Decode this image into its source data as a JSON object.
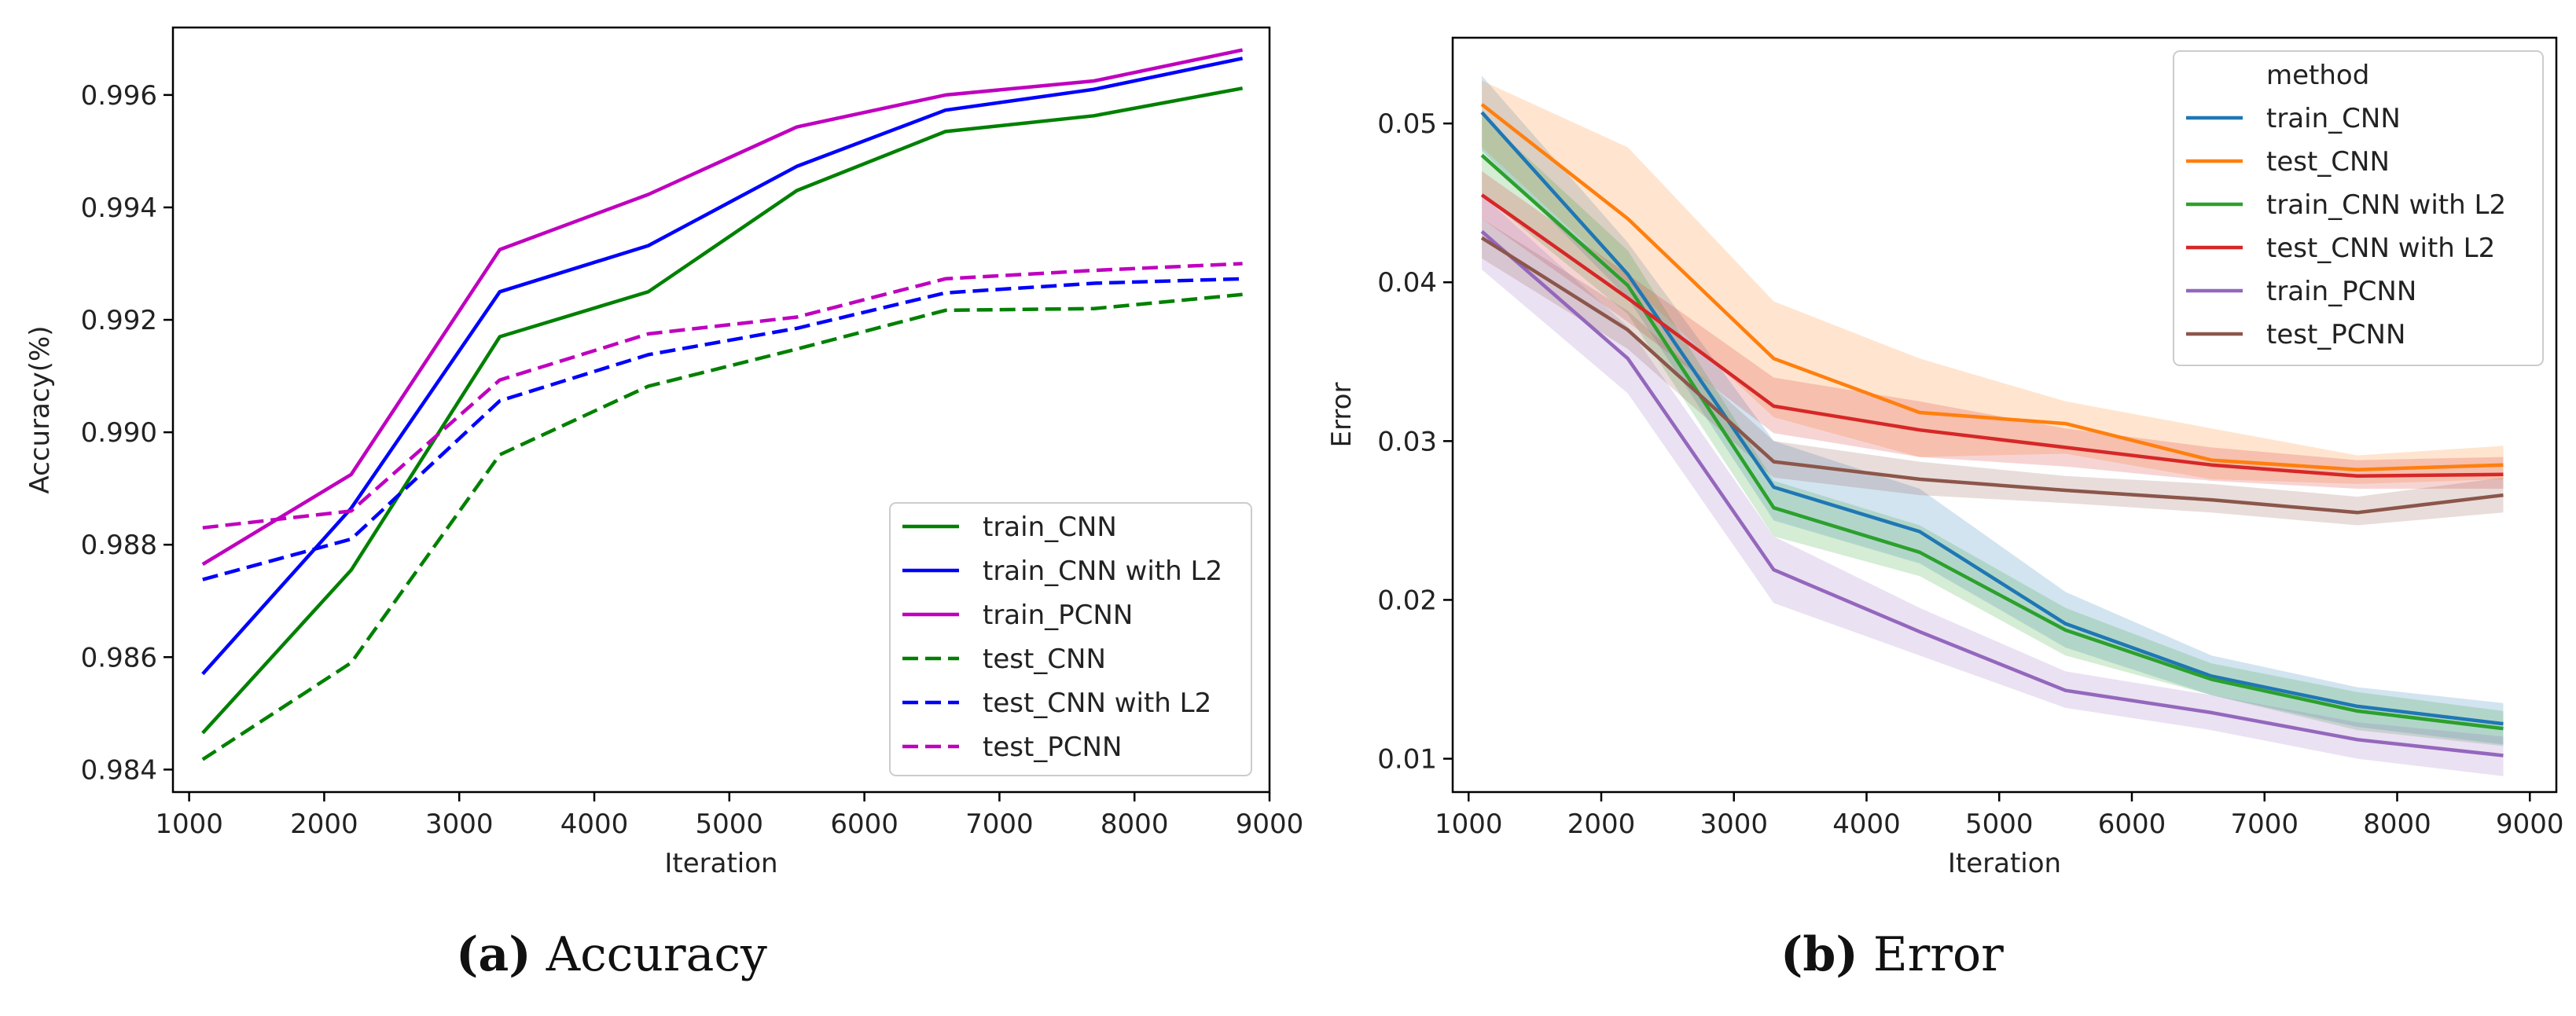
{
  "captions": [
    {
      "label": "(a)",
      "text": "Accuracy"
    },
    {
      "label": "(b)",
      "text": "Error"
    }
  ],
  "chart_data": [
    {
      "type": "line",
      "title": "",
      "xlabel": "Iteration",
      "ylabel": "Accuracy(%)",
      "xlim": [
        880,
        9000
      ],
      "ylim": [
        0.9836,
        0.9972
      ],
      "xticks": [
        1000,
        2000,
        3000,
        4000,
        5000,
        6000,
        7000,
        8000,
        9000
      ],
      "xtick_labels": [
        "1000",
        "2000",
        "3000",
        "4000",
        "5000",
        "6000",
        "7000",
        "8000",
        "9000"
      ],
      "yticks": [
        0.984,
        0.986,
        0.988,
        0.99,
        0.992,
        0.994,
        0.996
      ],
      "ytick_labels": [
        "0.984",
        "0.986",
        "0.988",
        "0.990",
        "0.992",
        "0.994",
        "0.996"
      ],
      "grid": false,
      "legend_position": "lower-right",
      "x": [
        1100,
        2200,
        3300,
        4400,
        5500,
        6600,
        7700,
        8800
      ],
      "series": [
        {
          "name": "train_CNN",
          "color": "#008000",
          "dash": "solid",
          "values": [
            0.98465,
            0.98755,
            0.9917,
            0.9925,
            0.9943,
            0.99535,
            0.99563,
            0.99612
          ]
        },
        {
          "name": "train_CNN with L2",
          "color": "#0000ff",
          "dash": "solid",
          "values": [
            0.9857,
            0.98865,
            0.9925,
            0.99332,
            0.99473,
            0.99573,
            0.9961,
            0.99665
          ]
        },
        {
          "name": "train_PCNN",
          "color": "#bf00bf",
          "dash": "solid",
          "values": [
            0.98765,
            0.98925,
            0.99325,
            0.99423,
            0.99543,
            0.996,
            0.99625,
            0.9968
          ]
        },
        {
          "name": "test_CNN",
          "color": "#008000",
          "dash": "dashed",
          "values": [
            0.98418,
            0.9859,
            0.9896,
            0.99082,
            0.99148,
            0.99217,
            0.9922,
            0.99245
          ]
        },
        {
          "name": "test_CNN with L2",
          "color": "#0000ff",
          "dash": "dashed",
          "values": [
            0.98738,
            0.9881,
            0.99056,
            0.99138,
            0.99185,
            0.99248,
            0.99265,
            0.99273
          ]
        },
        {
          "name": "test_PCNN",
          "color": "#bf00bf",
          "dash": "dashed",
          "values": [
            0.9883,
            0.9886,
            0.99093,
            0.99175,
            0.99205,
            0.99273,
            0.99288,
            0.993
          ]
        }
      ]
    },
    {
      "type": "line",
      "title": "",
      "xlabel": "Iteration",
      "ylabel": "Error",
      "xlim": [
        880,
        9200
      ],
      "ylim": [
        0.0079,
        0.0554
      ],
      "xticks": [
        1000,
        2000,
        3000,
        4000,
        5000,
        6000,
        7000,
        8000,
        9000
      ],
      "xtick_labels": [
        "1000",
        "2000",
        "3000",
        "4000",
        "5000",
        "6000",
        "7000",
        "8000",
        "9000"
      ],
      "yticks": [
        0.01,
        0.02,
        0.03,
        0.04,
        0.05
      ],
      "ytick_labels": [
        "0.01",
        "0.02",
        "0.03",
        "0.04",
        "0.05"
      ],
      "grid": false,
      "legend_title": "method",
      "legend_position": "upper-right",
      "x": [
        1100,
        2200,
        3300,
        4400,
        5500,
        6600,
        7700,
        8800
      ],
      "series": [
        {
          "name": "train_CNN",
          "color": "#1f77b4",
          "values": [
            0.0507,
            0.0405,
            0.0271,
            0.0243,
            0.0185,
            0.0152,
            0.0133,
            0.0122
          ],
          "lower": [
            0.0483,
            0.039,
            0.025,
            0.0223,
            0.017,
            0.014,
            0.012,
            0.0109
          ],
          "upper": [
            0.053,
            0.0425,
            0.03,
            0.027,
            0.0205,
            0.0165,
            0.0145,
            0.0135
          ]
        },
        {
          "name": "test_CNN",
          "color": "#ff7f0e",
          "values": [
            0.0512,
            0.044,
            0.0352,
            0.0318,
            0.0311,
            0.0288,
            0.0282,
            0.0285
          ],
          "lower": [
            0.0485,
            0.04,
            0.0315,
            0.029,
            0.0292,
            0.0276,
            0.0273,
            0.0276
          ],
          "upper": [
            0.0527,
            0.0485,
            0.0388,
            0.0352,
            0.0325,
            0.0308,
            0.0291,
            0.0297
          ]
        },
        {
          "name": "train_CNN with L2",
          "color": "#2ca02c",
          "values": [
            0.048,
            0.0398,
            0.0258,
            0.023,
            0.0181,
            0.015,
            0.013,
            0.0119
          ],
          "lower": [
            0.0455,
            0.038,
            0.024,
            0.0215,
            0.0165,
            0.014,
            0.0118,
            0.0108
          ],
          "upper": [
            0.0505,
            0.042,
            0.0275,
            0.0247,
            0.0195,
            0.016,
            0.0142,
            0.013
          ]
        },
        {
          "name": "test_CNN with L2",
          "color": "#d62728",
          "values": [
            0.0455,
            0.039,
            0.0322,
            0.0307,
            0.0296,
            0.0285,
            0.0278,
            0.0279
          ],
          "lower": [
            0.044,
            0.0375,
            0.0305,
            0.029,
            0.0284,
            0.0275,
            0.027,
            0.027
          ],
          "upper": [
            0.047,
            0.0405,
            0.034,
            0.0325,
            0.0308,
            0.0296,
            0.0288,
            0.029
          ]
        },
        {
          "name": "train_PCNN",
          "color": "#9467bd",
          "values": [
            0.0432,
            0.0352,
            0.0219,
            0.018,
            0.0143,
            0.0129,
            0.0112,
            0.0102
          ],
          "lower": [
            0.0408,
            0.033,
            0.0198,
            0.0165,
            0.0132,
            0.0118,
            0.01,
            0.0089
          ],
          "upper": [
            0.0455,
            0.0372,
            0.024,
            0.0195,
            0.0155,
            0.014,
            0.0123,
            0.0114
          ]
        },
        {
          "name": "test_PCNN",
          "color": "#8c564b",
          "values": [
            0.0428,
            0.037,
            0.0287,
            0.0276,
            0.0269,
            0.0263,
            0.0255,
            0.0266
          ],
          "lower": [
            0.0415,
            0.0358,
            0.0277,
            0.0266,
            0.0261,
            0.0255,
            0.0247,
            0.0255
          ],
          "upper": [
            0.044,
            0.0382,
            0.03,
            0.0287,
            0.0278,
            0.0273,
            0.0265,
            0.0277
          ]
        }
      ]
    }
  ]
}
